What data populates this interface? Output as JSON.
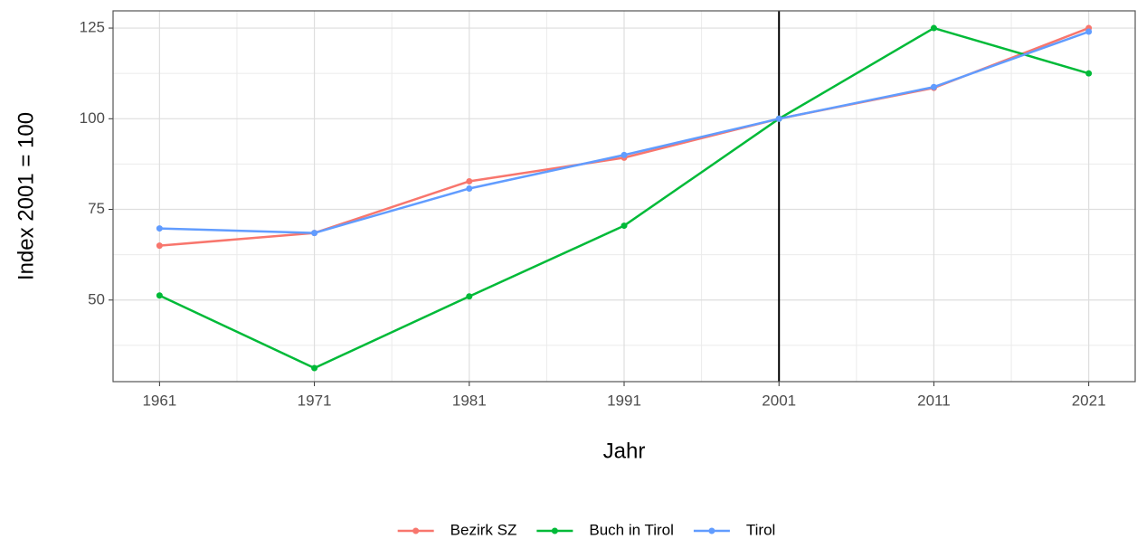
{
  "chart_data": {
    "type": "line",
    "x": [
      1961,
      1971,
      1981,
      1991,
      2001,
      2011,
      2021
    ],
    "series": [
      {
        "name": "Bezirk SZ",
        "color": "#F8766D",
        "values": [
          65,
          68.5,
          82.75,
          89.25,
          100,
          108.5,
          125
        ]
      },
      {
        "name": "Buch in Tirol",
        "color": "#00BA38",
        "values": [
          51.25,
          31.25,
          51,
          70.5,
          100,
          125,
          112.5
        ]
      },
      {
        "name": "Tirol",
        "color": "#619CFF",
        "values": [
          69.75,
          68.5,
          80.75,
          90,
          100,
          108.75,
          124
        ]
      }
    ],
    "xlabel": "Jahr",
    "ylabel": "Index 2001 = 100",
    "xlim": [
      1958,
      2024
    ],
    "xticks": [
      1961,
      1971,
      1981,
      1991,
      2001,
      2011,
      2021
    ],
    "ylim": [
      27.5,
      129.75
    ],
    "yticks": [
      50,
      75,
      100,
      125
    ],
    "vline": 2001,
    "grid": true,
    "legend": "bottom"
  }
}
